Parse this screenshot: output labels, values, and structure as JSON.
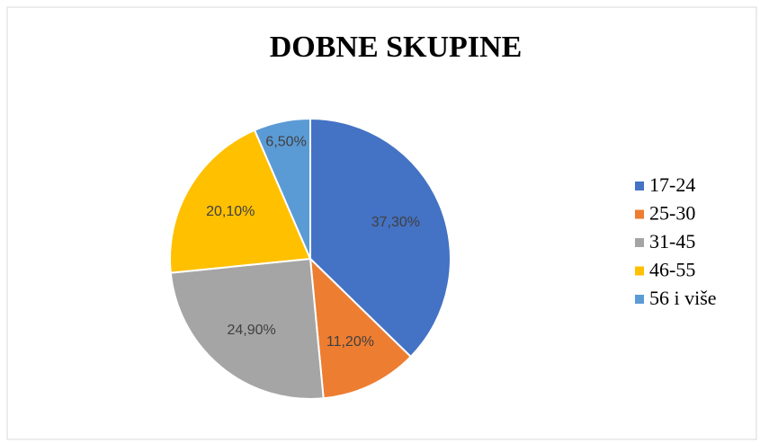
{
  "chart_data": {
    "type": "pie",
    "title": "DOBNE SKUPINE",
    "categories": [
      "17-24",
      "25-30",
      "31-45",
      "46-55",
      "56 i više"
    ],
    "values": [
      37.3,
      11.2,
      24.9,
      20.1,
      6.5
    ],
    "value_labels": [
      "37,30%",
      "11,20%",
      "24,90%",
      "20,10%",
      "6,50%"
    ],
    "colors": [
      "#4472c4",
      "#ed7d31",
      "#a5a5a5",
      "#ffc000",
      "#5b9bd5"
    ],
    "legend": "right"
  }
}
